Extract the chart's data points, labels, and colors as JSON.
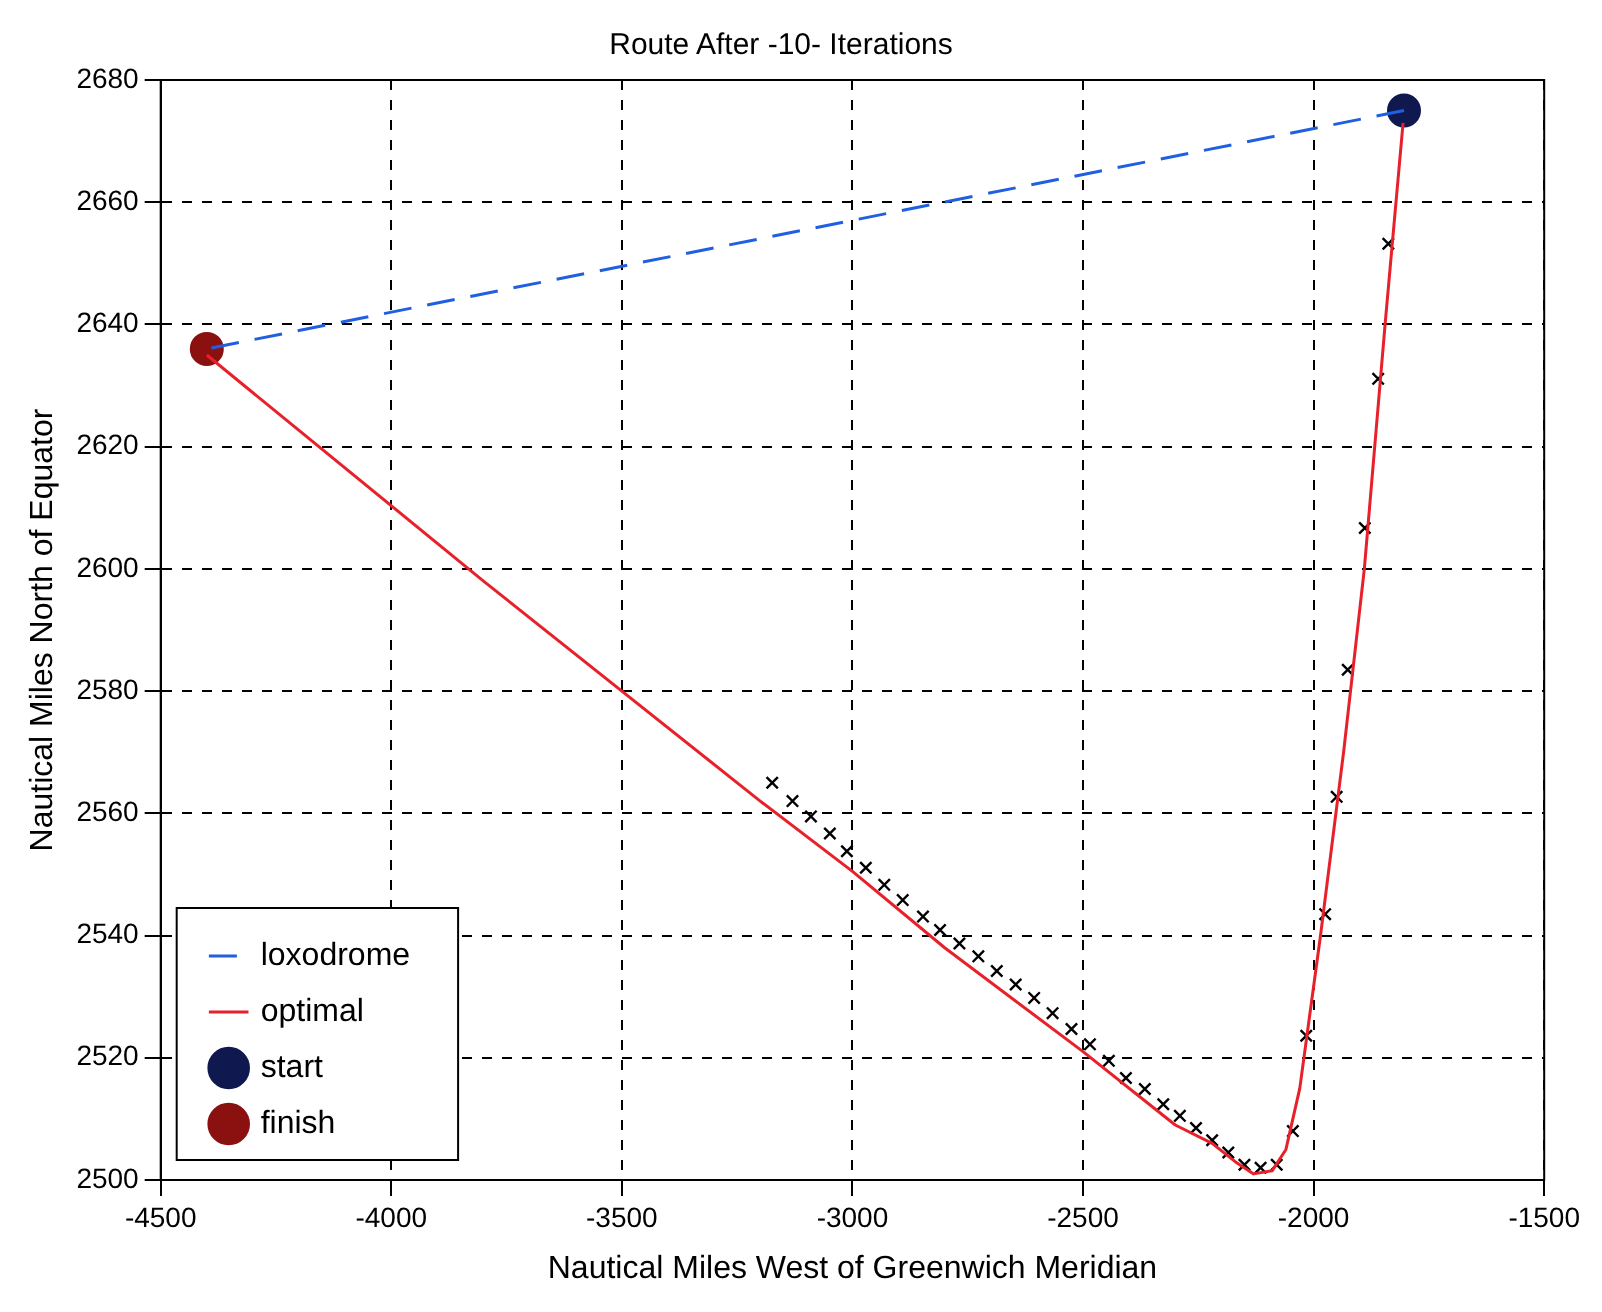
{
  "chart_data": {
    "type": "line",
    "title": "Route After -10- Iterations",
    "xlabel": "Nautical Miles West of Greenwich Meridian",
    "ylabel": "Nautical Miles North of Equator",
    "xlim": [
      -4500,
      -1500
    ],
    "xticks": [
      -4500,
      -4000,
      -3500,
      -3000,
      -2500,
      -2000,
      -1500
    ],
    "ylim": [
      2500,
      2680
    ],
    "yticks": [
      2500,
      2520,
      2540,
      2560,
      2580,
      2600,
      2620,
      2640,
      2660,
      2680
    ],
    "grid": true,
    "legend": "bottom left",
    "series": [
      {
        "name": "loxodrome",
        "type": "line",
        "line_style": "dashed",
        "marker": "none",
        "color": "#1f5fe0",
        "x": [
          -1804,
          -4400
        ],
        "values": [
          2675,
          2636
        ]
      },
      {
        "name": "optimal",
        "type": "line",
        "line_style": "solid",
        "marker": "none",
        "color": "#e8202a",
        "x": [
          -1806,
          -1845,
          -1890,
          -1935,
          -1985,
          -2030,
          -2060,
          -2090,
          -2130,
          -2170,
          -2220,
          -2300,
          -2500,
          -2800,
          -3000,
          -3200,
          -3800,
          -4400
        ],
        "values": [
          2673,
          2640,
          2600,
          2570,
          2540,
          2515,
          2505,
          2501.5,
          2501,
          2503,
          2506,
          2509,
          2521,
          2538,
          2550.5,
          2562,
          2598,
          2635
        ]
      },
      {
        "type": "scatter",
        "marker": "cross",
        "color": "#000000",
        "x": [
          -3174,
          -3130,
          -3090,
          -3049,
          -3012,
          -2971,
          -2931,
          -2891,
          -2847,
          -2810,
          -2768,
          -2727,
          -2687,
          -2646,
          -2606,
          -2566,
          -2525,
          -2485,
          -2444,
          -2407,
          -2366,
          -2326,
          -2290,
          -2255,
          -2220,
          -2185,
          -2150,
          -2115,
          -2080,
          -2045,
          -2016,
          -1975,
          -1950,
          -1926,
          -1889,
          -1860,
          -1838
        ],
        "values": [
          2565,
          2562,
          2559.5,
          2556.7,
          2553.8,
          2551.1,
          2548.3,
          2545.8,
          2543.1,
          2540.9,
          2538.7,
          2536.6,
          2534.2,
          2532,
          2529.8,
          2527.3,
          2524.7,
          2522.2,
          2519.5,
          2516.7,
          2514.9,
          2512.4,
          2510.5,
          2508.5,
          2506.5,
          2504.5,
          2502.5,
          2502,
          2502.5,
          2508,
          2523.6,
          2543.5,
          2562.7,
          2583.5,
          2606.7,
          2631.1,
          2653.2
        ]
      },
      {
        "name": "start",
        "type": "scatter",
        "marker": "circle",
        "color": "#101850",
        "x": [
          -1804
        ],
        "values": [
          2675
        ]
      },
      {
        "name": "finish",
        "type": "scatter",
        "marker": "circle",
        "color": "#8b1010",
        "x": [
          -4400
        ],
        "values": [
          2636
        ]
      }
    ]
  }
}
